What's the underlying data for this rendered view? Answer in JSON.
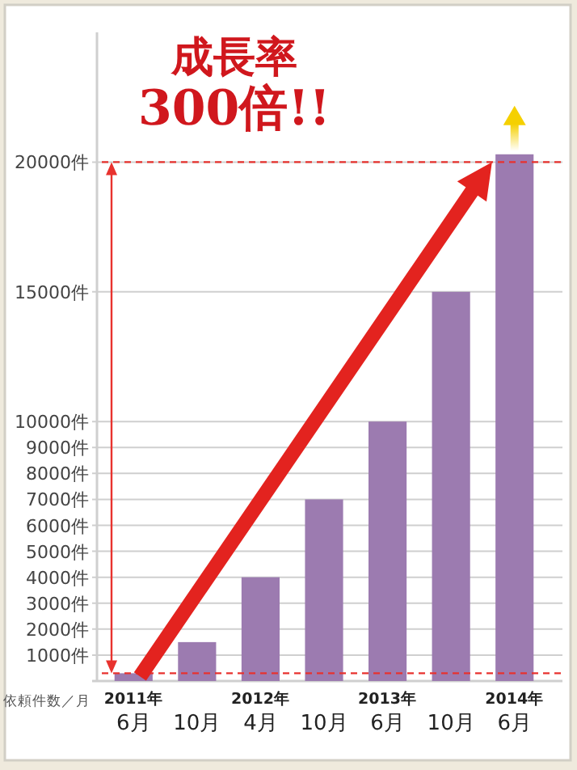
{
  "chart_data": {
    "type": "bar",
    "title": "成長率\n300倍!!",
    "ylabel": "依頼件数／月",
    "categories": [
      "2011年\n6月",
      "10月",
      "2012年\n4月",
      "10月",
      "2013年\n6月",
      "10月",
      "2014年\n6月"
    ],
    "values": [
      300,
      1500,
      4000,
      7000,
      10000,
      15000,
      20300
    ],
    "color": "#9c7bb0",
    "ylim": [
      0,
      25000
    ],
    "yticks": [
      {
        "value": 1000,
        "label": "1000件"
      },
      {
        "value": 2000,
        "label": "2000件"
      },
      {
        "value": 3000,
        "label": "3000件"
      },
      {
        "value": 4000,
        "label": "4000件"
      },
      {
        "value": 5000,
        "label": "5000件"
      },
      {
        "value": 6000,
        "label": "6000件"
      },
      {
        "value": 7000,
        "label": "7000件"
      },
      {
        "value": 8000,
        "label": "8000件"
      },
      {
        "value": 9000,
        "label": "9000件"
      },
      {
        "value": 10000,
        "label": "10000件"
      },
      {
        "value": 15000,
        "label": "15000件"
      },
      {
        "value": 20000,
        "label": "20000件"
      }
    ],
    "grid": "y",
    "ref_lines": [
      {
        "axis": "y",
        "value": 20000,
        "color": "#e8322e",
        "line_style": "dashed"
      },
      {
        "axis": "y",
        "value": 300,
        "color": "#e8322e",
        "line_style": "dashed"
      }
    ]
  }
}
